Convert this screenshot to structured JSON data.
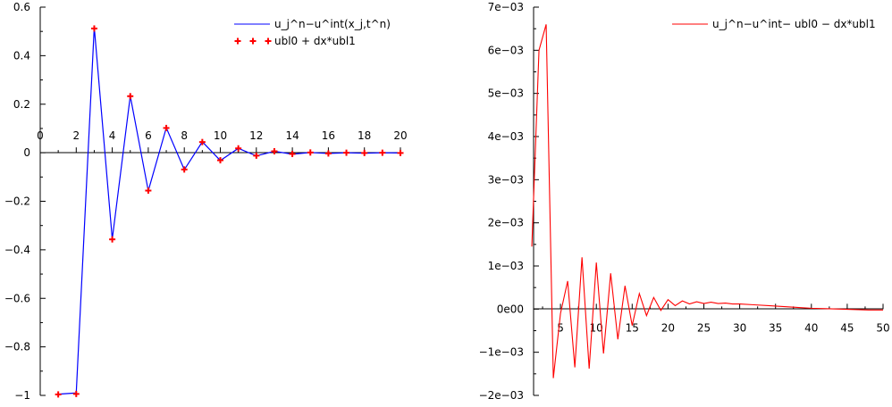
{
  "chart_data": [
    {
      "type": "line",
      "xlim": [
        0,
        20
      ],
      "ylim": [
        -1,
        0.6
      ],
      "x_ticks": [
        0,
        2,
        4,
        6,
        8,
        10,
        12,
        14,
        16,
        18,
        20
      ],
      "x_tick_labels": [
        "0",
        "2",
        "4",
        "6",
        "8",
        "10",
        "12",
        "14",
        "16",
        "18",
        "20"
      ],
      "y_ticks": [
        -1,
        -0.8,
        -0.6,
        -0.4,
        -0.2,
        0,
        0.2,
        0.4,
        0.6
      ],
      "y_tick_labels": [
        "−1",
        "−0.8",
        "−0.6",
        "−0.4",
        "−0.2",
        "0",
        "0.2",
        "0.4",
        "0.6"
      ],
      "legend_position": "top-right",
      "series": [
        {
          "name": "u_j^n−u^int(x_j,t^n)",
          "style": "line",
          "color": "#0000ff",
          "x": [
            1,
            2,
            3,
            4,
            5,
            6,
            7,
            8,
            9,
            10,
            11,
            12,
            13,
            14,
            15,
            16,
            17,
            18,
            19,
            20
          ],
          "y": [
            -0.995,
            -0.99,
            0.518,
            -0.356,
            0.234,
            -0.157,
            0.103,
            -0.07,
            0.045,
            -0.032,
            0.018,
            -0.013,
            0.006,
            -0.006,
            0.001,
            -0.003,
            0.0,
            -0.002,
            0.0,
            -0.001
          ]
        },
        {
          "name": "ubl0 + dx*ubl1",
          "style": "markers",
          "marker": "+",
          "color": "#ff0000",
          "x": [
            1,
            2,
            3,
            4,
            5,
            6,
            7,
            8,
            9,
            10,
            11,
            12,
            13,
            14,
            15,
            16,
            17,
            18,
            19,
            20
          ],
          "y": [
            -0.996,
            -0.994,
            0.512,
            -0.357,
            0.233,
            -0.156,
            0.102,
            -0.069,
            0.044,
            -0.031,
            0.018,
            -0.012,
            0.006,
            -0.005,
            0.001,
            -0.003,
            0.0,
            -0.001,
            0.0,
            -0.001
          ]
        }
      ]
    },
    {
      "type": "line",
      "xlim": [
        0,
        50
      ],
      "ylim": [
        -0.002,
        0.007
      ],
      "x_ticks": [
        5,
        10,
        15,
        20,
        25,
        30,
        35,
        40,
        45,
        50
      ],
      "x_tick_labels": [
        "5",
        "10",
        "15",
        "20",
        "25",
        "30",
        "35",
        "40",
        "45",
        "50"
      ],
      "y_ticks": [
        -0.002,
        -0.001,
        0,
        0.001,
        0.002,
        0.003,
        0.004,
        0.005,
        0.006,
        0.007
      ],
      "y_tick_labels": [
        "−2e−03",
        "−1e−03",
        "0e00",
        "1e−03",
        "2e−03",
        "3e−03",
        "4e−03",
        "5e−03",
        "6e−03",
        "7e−03"
      ],
      "legend_position": "top-right",
      "series": [
        {
          "name": "u_j^n−u^int− ubl0 − dx*ubl1",
          "style": "line",
          "color": "#ff0000",
          "x": [
            1,
            2,
            3,
            4,
            5,
            6,
            7,
            8,
            9,
            10,
            11,
            12,
            13,
            14,
            15,
            16,
            17,
            18,
            19,
            20,
            21,
            22,
            23,
            24,
            25,
            26,
            27,
            28,
            29,
            30,
            32,
            34,
            36,
            38,
            40,
            42,
            44,
            46,
            48,
            50
          ],
          "y": [
            0.00145,
            0.006,
            0.0066,
            -0.0016,
            -0.0001,
            0.00065,
            -0.00135,
            0.0012,
            -0.00138,
            0.00108,
            -0.00103,
            0.00083,
            -0.0007,
            0.00054,
            -0.00038,
            0.00036,
            -0.00015,
            0.00027,
            -3e-05,
            0.00022,
            8e-05,
            0.00019,
            0.00012,
            0.00017,
            0.00013,
            0.00016,
            0.00013,
            0.00014,
            0.00012,
            0.00012,
            0.0001,
            8e-05,
            6e-05,
            4e-05,
            2e-05,
            1e-05,
            0.0,
            -1e-05,
            -2e-05,
            -2e-05
          ]
        }
      ]
    }
  ]
}
